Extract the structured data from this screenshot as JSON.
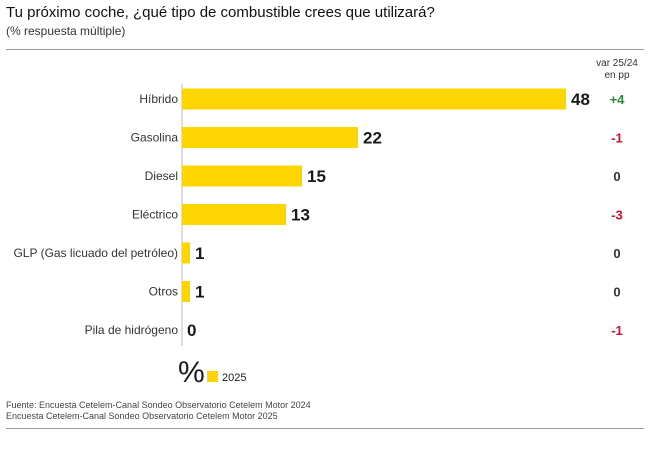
{
  "title": "Tu próximo coche, ¿qué tipo de combustible crees que utilizará?",
  "subtitle": "(% respuesta múltiple)",
  "var_header": [
    "var 25/24",
    "en pp"
  ],
  "sources": [
    "Fuente: Encuesta Cetelem-Canal Sondeo Observatorio Cetelem Motor 2024",
    "Encuesta Cetelem-Canal Sondeo Observatorio Cetelem Motor 2025"
  ],
  "colors": {
    "bar": "#FFD500",
    "positive": "#2E8B3E",
    "negative": "#C8102E",
    "neutral": "#333333"
  },
  "chart_data": {
    "type": "bar",
    "orientation": "horizontal",
    "title": "Tu próximo coche, ¿qué tipo de combustible crees que utilizará?",
    "unit_symbol": "%",
    "categories": [
      "Híbrido",
      "Gasolina",
      "Diesel",
      "Eléctrico",
      "GLP (Gas licuado del petróleo)",
      "Otros",
      "Pila de hidrógeno"
    ],
    "series": [
      {
        "name": "2025",
        "values": [
          48,
          22,
          15,
          13,
          1,
          1,
          0
        ]
      }
    ],
    "variation_label": "var 25/24 en pp",
    "variation": [
      "+4",
      "-1",
      "0",
      "-3",
      "0",
      "0",
      "-1"
    ],
    "legend": [
      "2025"
    ],
    "xlim": [
      0,
      48
    ]
  }
}
